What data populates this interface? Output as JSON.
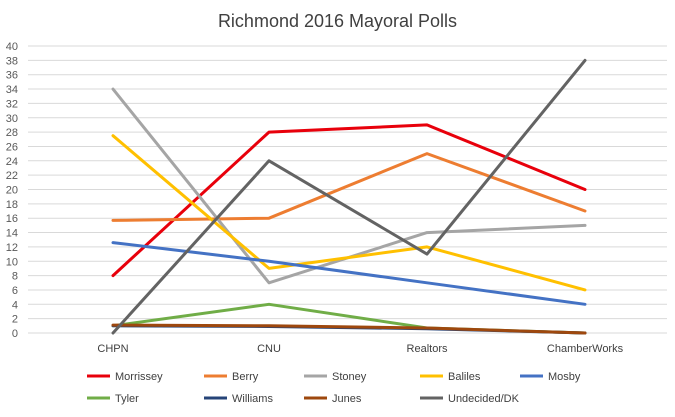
{
  "chart_data": {
    "type": "line",
    "title": "Richmond 2016 Mayoral Polls",
    "categories": [
      "CHPN",
      "CNU",
      "Realtors",
      "ChamberWorks"
    ],
    "ylim": [
      0,
      40
    ],
    "yticks": [
      0,
      2,
      4,
      6,
      8,
      10,
      12,
      14,
      16,
      18,
      20,
      22,
      24,
      26,
      28,
      30,
      32,
      34,
      36,
      38,
      40
    ],
    "grid": true,
    "legend_position": "bottom",
    "series": [
      {
        "name": "Morrissey",
        "color": "#e8000b",
        "values": [
          8,
          28,
          29,
          20
        ]
      },
      {
        "name": "Berry",
        "color": "#ed7d31",
        "values": [
          15.7,
          16,
          25,
          17
        ]
      },
      {
        "name": "Stoney",
        "color": "#a5a5a5",
        "values": [
          34,
          7,
          14,
          15
        ]
      },
      {
        "name": "Baliles",
        "color": "#ffc000",
        "values": [
          27.5,
          9,
          12,
          6
        ]
      },
      {
        "name": "Mosby",
        "color": "#4472c4",
        "values": [
          12.6,
          10,
          7,
          4
        ]
      },
      {
        "name": "Tyler",
        "color": "#70ad47",
        "values": [
          1,
          4,
          0.7,
          0
        ]
      },
      {
        "name": "Williams",
        "color": "#264478",
        "values": [
          1,
          0.9,
          0.6,
          0
        ]
      },
      {
        "name": "Junes",
        "color": "#9e480e",
        "values": [
          1.1,
          1,
          0.7,
          0
        ]
      },
      {
        "name": "Undecided/DK",
        "color": "#636363",
        "values": [
          0,
          24,
          11,
          38
        ]
      }
    ]
  }
}
